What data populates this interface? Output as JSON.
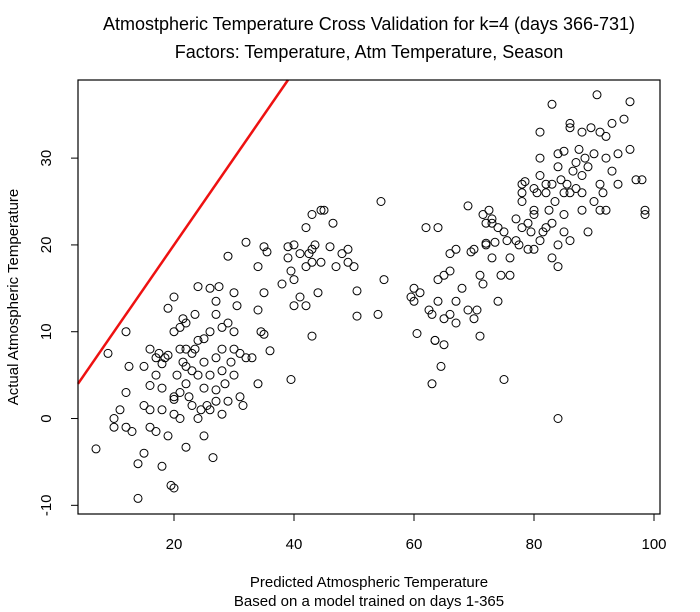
{
  "chart_data": {
    "type": "scatter",
    "title": "Atmostpheric Temperature Cross Validation for k=4 (days 366-731)",
    "subtitle": "Factors: Temperature, Atm Temperature, Season",
    "xlabel": "Predicted Atmospheric Temperature",
    "xlabel_sub": "Based on a model trained on days 1-365",
    "ylabel": "Actual Atmospheric Temperature",
    "xlim": [
      4,
      101
    ],
    "ylim": [
      -11,
      39
    ],
    "xticks": [
      20,
      40,
      60,
      80,
      100
    ],
    "yticks": [
      -10,
      0,
      10,
      20,
      30
    ],
    "grid": false,
    "reference_line": {
      "color": "#ee1111",
      "x": [
        4,
        39
      ],
      "y": [
        4,
        39
      ]
    },
    "points": [
      [
        7,
        -3.5
      ],
      [
        9,
        7.5
      ],
      [
        10,
        0
      ],
      [
        10,
        -1
      ],
      [
        11,
        1
      ],
      [
        12,
        10
      ],
      [
        12,
        -1
      ],
      [
        12,
        3
      ],
      [
        13,
        -1.5
      ],
      [
        12.5,
        6
      ],
      [
        14,
        -9.2
      ],
      [
        14,
        -5.2
      ],
      [
        15,
        -4
      ],
      [
        15,
        1.5
      ],
      [
        15,
        6
      ],
      [
        16,
        3.8
      ],
      [
        16,
        8
      ],
      [
        16,
        1
      ],
      [
        16,
        -1
      ],
      [
        17,
        7
      ],
      [
        17,
        -1.5
      ],
      [
        17,
        5
      ],
      [
        17.5,
        7.5
      ],
      [
        18,
        -5.5
      ],
      [
        18,
        1
      ],
      [
        18,
        3.5
      ],
      [
        18,
        6.3
      ],
      [
        18.5,
        7
      ],
      [
        19,
        -2
      ],
      [
        19,
        12.7
      ],
      [
        19,
        7.3
      ],
      [
        19.5,
        -7.7
      ],
      [
        20,
        2.2
      ],
      [
        20,
        0.5
      ],
      [
        20,
        10
      ],
      [
        20,
        14
      ],
      [
        20,
        -8
      ],
      [
        20,
        2.5
      ],
      [
        20.5,
        5
      ],
      [
        21,
        3
      ],
      [
        21,
        8
      ],
      [
        21,
        10.5
      ],
      [
        21,
        0
      ],
      [
        21.5,
        11.5
      ],
      [
        21.5,
        6.5
      ],
      [
        22,
        -3.3
      ],
      [
        22,
        4
      ],
      [
        22,
        6
      ],
      [
        22,
        8
      ],
      [
        22,
        11
      ],
      [
        22.5,
        2.5
      ],
      [
        23,
        5.5
      ],
      [
        23,
        7.5
      ],
      [
        23,
        1.5
      ],
      [
        23.5,
        12
      ],
      [
        23.5,
        8
      ],
      [
        24,
        15.2
      ],
      [
        24,
        0
      ],
      [
        24,
        5
      ],
      [
        24,
        9
      ],
      [
        24.5,
        1
      ],
      [
        25,
        -2
      ],
      [
        25,
        3.5
      ],
      [
        25,
        6.5
      ],
      [
        25,
        9.2
      ],
      [
        25.5,
        1.5
      ],
      [
        26,
        10
      ],
      [
        26,
        15
      ],
      [
        26,
        1
      ],
      [
        26,
        5
      ],
      [
        26.5,
        -4.5
      ],
      [
        27,
        7
      ],
      [
        27,
        12
      ],
      [
        27,
        13.5
      ],
      [
        27,
        3.3
      ],
      [
        27,
        2
      ],
      [
        27.5,
        15.2
      ],
      [
        28,
        0.5
      ],
      [
        28,
        5.5
      ],
      [
        28,
        8
      ],
      [
        28,
        10.5
      ],
      [
        28.5,
        4
      ],
      [
        29,
        2
      ],
      [
        29,
        18.7
      ],
      [
        29,
        11
      ],
      [
        29.5,
        6.5
      ],
      [
        30,
        14.5
      ],
      [
        30,
        5
      ],
      [
        30,
        10
      ],
      [
        30,
        8
      ],
      [
        30.5,
        13
      ],
      [
        31,
        2.5
      ],
      [
        31,
        7.5
      ],
      [
        31.5,
        1.5
      ],
      [
        32,
        20.3
      ],
      [
        32,
        7
      ],
      [
        33,
        7
      ],
      [
        34,
        4
      ],
      [
        34,
        17.5
      ],
      [
        34,
        12.5
      ],
      [
        34.5,
        10
      ],
      [
        35,
        14.5
      ],
      [
        35,
        9.7
      ],
      [
        35,
        19.8
      ],
      [
        35.5,
        19.2
      ],
      [
        36,
        7.8
      ],
      [
        38,
        15.5
      ],
      [
        39,
        19.8
      ],
      [
        39,
        18.5
      ],
      [
        39.5,
        17
      ],
      [
        39.5,
        4.5
      ],
      [
        40,
        20
      ],
      [
        40,
        13
      ],
      [
        40,
        16
      ],
      [
        41,
        19
      ],
      [
        41,
        14
      ],
      [
        42,
        22
      ],
      [
        42,
        17.5
      ],
      [
        42,
        13
      ],
      [
        42.5,
        19
      ],
      [
        43,
        23.5
      ],
      [
        43,
        18
      ],
      [
        43,
        19.5
      ],
      [
        43,
        9.5
      ],
      [
        43.5,
        20
      ],
      [
        44,
        14.5
      ],
      [
        44.5,
        18
      ],
      [
        44.5,
        24
      ],
      [
        45,
        24
      ],
      [
        46,
        19.8
      ],
      [
        46.5,
        22.5
      ],
      [
        47,
        17.5
      ],
      [
        48,
        19
      ],
      [
        49,
        18
      ],
      [
        49,
        19.5
      ],
      [
        50,
        17.5
      ],
      [
        50.5,
        14.7
      ],
      [
        50.5,
        11.8
      ],
      [
        54,
        12
      ],
      [
        54.5,
        25
      ],
      [
        55,
        16
      ],
      [
        59.5,
        14
      ],
      [
        60,
        15
      ],
      [
        60.5,
        9.8
      ],
      [
        61,
        14.5
      ],
      [
        62,
        22
      ],
      [
        62.5,
        12.5
      ],
      [
        63,
        4
      ],
      [
        63.5,
        9
      ],
      [
        63.5,
        9
      ],
      [
        64,
        16
      ],
      [
        64,
        13.5
      ],
      [
        64,
        22
      ],
      [
        64.5,
        6
      ],
      [
        65,
        16.5
      ],
      [
        65,
        11.5
      ],
      [
        66,
        19
      ],
      [
        66,
        12
      ],
      [
        66,
        17
      ],
      [
        67,
        11
      ],
      [
        67,
        19.5
      ],
      [
        68,
        15
      ],
      [
        69,
        12.5
      ],
      [
        69,
        24.5
      ],
      [
        69.5,
        19.2
      ],
      [
        70,
        19.5
      ],
      [
        70,
        11.5
      ],
      [
        70.5,
        12.5
      ],
      [
        71,
        16.5
      ],
      [
        71,
        9.5
      ],
      [
        71.5,
        23.5
      ],
      [
        71.5,
        15.5
      ],
      [
        72,
        20
      ],
      [
        72,
        22.5
      ],
      [
        72,
        20.2
      ],
      [
        72.5,
        24
      ],
      [
        73,
        18.5
      ],
      [
        73,
        23
      ],
      [
        73,
        22.5
      ],
      [
        73.5,
        20.3
      ],
      [
        74,
        13.5
      ],
      [
        74,
        22
      ],
      [
        74.5,
        16.5
      ],
      [
        75,
        4.5
      ],
      [
        75.5,
        20.5
      ],
      [
        76,
        16.5
      ],
      [
        76,
        18.5
      ],
      [
        77,
        23
      ],
      [
        77,
        20.5
      ],
      [
        77.5,
        20
      ],
      [
        78,
        26
      ],
      [
        78,
        25
      ],
      [
        78,
        22
      ],
      [
        78,
        27
      ],
      [
        78.5,
        27.3
      ],
      [
        79,
        19.5
      ],
      [
        79,
        22.5
      ],
      [
        79.5,
        21.5
      ],
      [
        80,
        23.5
      ],
      [
        80,
        19.5
      ],
      [
        80,
        24
      ],
      [
        80.5,
        26
      ],
      [
        81,
        30
      ],
      [
        81,
        33
      ],
      [
        81,
        20.5
      ],
      [
        81,
        28
      ],
      [
        81.5,
        21.5
      ],
      [
        82,
        22
      ],
      [
        82,
        26
      ],
      [
        82,
        27
      ],
      [
        82.5,
        24
      ],
      [
        83,
        36.2
      ],
      [
        83,
        22.5
      ],
      [
        83,
        18.5
      ],
      [
        83,
        27
      ],
      [
        83.5,
        25
      ],
      [
        84,
        17.5
      ],
      [
        84,
        20
      ],
      [
        84,
        29
      ],
      [
        84,
        30.5
      ],
      [
        84,
        0
      ],
      [
        84.5,
        27.5
      ],
      [
        85,
        23.5
      ],
      [
        85,
        21.5
      ],
      [
        85,
        26
      ],
      [
        85,
        30.8
      ],
      [
        85.5,
        27
      ],
      [
        86,
        20.5
      ],
      [
        86,
        26
      ],
      [
        86,
        34
      ],
      [
        86,
        33.5
      ],
      [
        86.5,
        28.5
      ],
      [
        87,
        29.5
      ],
      [
        87,
        26.5
      ],
      [
        87.5,
        31
      ],
      [
        88,
        24
      ],
      [
        88,
        28
      ],
      [
        88,
        33
      ],
      [
        88,
        26
      ],
      [
        88.5,
        30
      ],
      [
        89,
        21.5
      ],
      [
        89,
        29
      ],
      [
        89.5,
        33.5
      ],
      [
        90,
        25
      ],
      [
        90,
        30.5
      ],
      [
        90.5,
        37.3
      ],
      [
        91,
        24
      ],
      [
        91,
        27
      ],
      [
        91,
        33
      ],
      [
        91.5,
        26
      ],
      [
        92,
        30
      ],
      [
        92,
        24
      ],
      [
        92,
        32.5
      ],
      [
        93,
        28.5
      ],
      [
        93,
        34
      ],
      [
        94,
        30.5
      ],
      [
        94,
        27
      ],
      [
        95,
        34.5
      ],
      [
        96,
        36.5
      ],
      [
        96,
        31
      ],
      [
        97,
        27.5
      ],
      [
        98,
        27.5
      ],
      [
        98.5,
        24
      ],
      [
        98.5,
        23.5
      ],
      [
        60,
        13.5
      ],
      [
        65,
        8.5
      ],
      [
        67,
        13.5
      ],
      [
        63,
        12
      ],
      [
        75,
        21.5
      ],
      [
        80,
        26.5
      ]
    ]
  }
}
